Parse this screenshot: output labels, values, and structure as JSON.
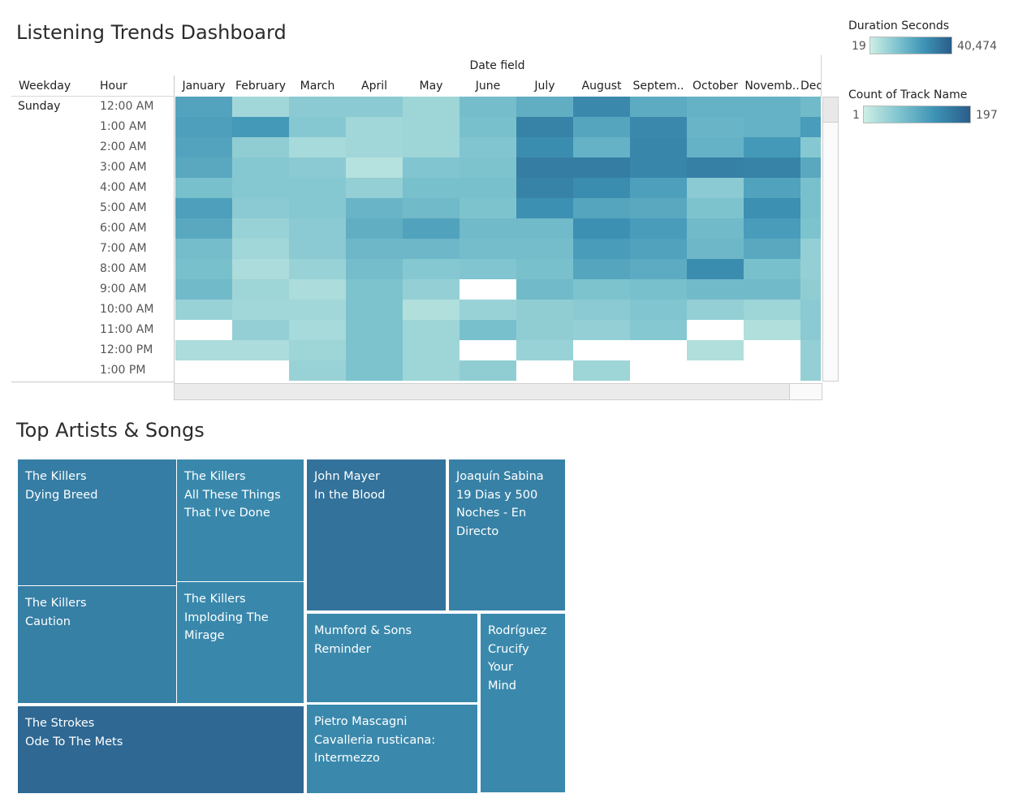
{
  "dashboard": {
    "title": "Listening Trends Dashboard"
  },
  "heatmap": {
    "column_header": "Date field",
    "row_headers": [
      "Weekday",
      "Hour"
    ],
    "weekday": "Sunday",
    "months": [
      "January",
      "February",
      "March",
      "April",
      "May",
      "June",
      "July",
      "August",
      "Septem..",
      "October",
      "Novemb..",
      "Dec"
    ],
    "hours": [
      "12:00 AM",
      "1:00 AM",
      "2:00 AM",
      "3:00 AM",
      "4:00 AM",
      "5:00 AM",
      "6:00 AM",
      "7:00 AM",
      "8:00 AM",
      "9:00 AM",
      "10:00 AM",
      "11:00 AM",
      "12:00 PM",
      "1:00 PM"
    ]
  },
  "legends": {
    "duration": {
      "title": "Duration Seconds",
      "min": "19",
      "max": "40,474"
    },
    "count": {
      "title": "Count of Track Name",
      "min": "1",
      "max": "197"
    }
  },
  "treemap_title": "Top Artists & Songs",
  "chart_data": [
    {
      "type": "heatmap",
      "x_categories": [
        "January",
        "February",
        "March",
        "April",
        "May",
        "June",
        "July",
        "August",
        "September",
        "October",
        "November",
        "December"
      ],
      "y_categories": [
        "12:00 AM",
        "1:00 AM",
        "2:00 AM",
        "3:00 AM",
        "4:00 AM",
        "5:00 AM",
        "6:00 AM",
        "7:00 AM",
        "8:00 AM",
        "9:00 AM",
        "10:00 AM",
        "11:00 AM",
        "12:00 PM",
        "1:00 PM"
      ],
      "value_range": [
        19,
        40474
      ],
      "values": [
        [
          0.55,
          0.18,
          0.28,
          0.28,
          0.2,
          0.38,
          0.48,
          0.72,
          0.5,
          0.46,
          0.46,
          0.4
        ],
        [
          0.58,
          0.62,
          0.3,
          0.18,
          0.2,
          0.36,
          0.76,
          0.54,
          0.72,
          0.44,
          0.46,
          0.6
        ],
        [
          0.55,
          0.26,
          0.16,
          0.18,
          0.2,
          0.32,
          0.7,
          0.46,
          0.74,
          0.46,
          0.62,
          0.3
        ],
        [
          0.52,
          0.3,
          0.28,
          0.1,
          0.32,
          0.34,
          0.8,
          0.8,
          0.74,
          0.78,
          0.76,
          0.52
        ],
        [
          0.36,
          0.3,
          0.3,
          0.24,
          0.36,
          0.36,
          0.76,
          0.7,
          0.58,
          0.28,
          0.56,
          0.36
        ],
        [
          0.58,
          0.28,
          0.3,
          0.44,
          0.4,
          0.34,
          0.68,
          0.54,
          0.52,
          0.34,
          0.68,
          0.36
        ],
        [
          0.52,
          0.22,
          0.28,
          0.48,
          0.56,
          0.4,
          0.4,
          0.68,
          0.6,
          0.4,
          0.6,
          0.34
        ],
        [
          0.38,
          0.18,
          0.28,
          0.42,
          0.42,
          0.38,
          0.38,
          0.6,
          0.56,
          0.42,
          0.52,
          0.24
        ],
        [
          0.36,
          0.14,
          0.22,
          0.38,
          0.3,
          0.32,
          0.36,
          0.54,
          0.5,
          0.7,
          0.36,
          0.24
        ],
        [
          0.4,
          0.2,
          0.14,
          0.34,
          0.24,
          null,
          0.4,
          0.34,
          0.36,
          0.4,
          0.4,
          0.26
        ],
        [
          0.22,
          0.18,
          0.18,
          0.34,
          0.12,
          0.22,
          0.26,
          0.28,
          0.32,
          0.24,
          0.2,
          0.28
        ],
        [
          null,
          0.24,
          0.16,
          0.34,
          0.2,
          0.36,
          0.26,
          0.24,
          0.3,
          null,
          0.12,
          0.28
        ],
        [
          0.14,
          0.14,
          0.2,
          0.34,
          0.2,
          null,
          0.22,
          null,
          null,
          0.12,
          null,
          0.24
        ],
        [
          null,
          null,
          0.22,
          0.34,
          0.2,
          0.26,
          null,
          0.2,
          null,
          null,
          null,
          0.24
        ]
      ],
      "colors": {
        "low": "#c4ebe0",
        "high": "#2a5d8a"
      }
    },
    {
      "type": "treemap",
      "title": "Top Artists & Songs",
      "items": [
        {
          "artist": "The Killers",
          "song_lines": [
            "Dying Breed"
          ],
          "shade": 0.55
        },
        {
          "artist": "The Killers",
          "song_lines": [
            "All These Things",
            "That I've Done"
          ],
          "shade": 0.4
        },
        {
          "artist": "The Killers",
          "song_lines": [
            "Caution"
          ],
          "shade": 0.52
        },
        {
          "artist": "The Killers",
          "song_lines": [
            "Imploding The",
            "Mirage"
          ],
          "shade": 0.4
        },
        {
          "artist": "The Strokes",
          "song_lines": [
            "Ode To The Mets"
          ],
          "shade": 0.85
        },
        {
          "artist": "John Mayer",
          "song_lines": [
            "In the Blood"
          ],
          "shade": 0.7
        },
        {
          "artist": "Joaquín Sabina",
          "song_lines": [
            "19 Dias y 500",
            "Noches - En",
            "Directo"
          ],
          "shade": 0.5
        },
        {
          "artist": "Mumford & Sons",
          "song_lines": [
            "Reminder"
          ],
          "shade": 0.38
        },
        {
          "artist": "Rodríguez",
          "song_lines": [
            "Crucify Your",
            "Mind"
          ],
          "shade": 0.38
        },
        {
          "artist": "Pietro Mascagni",
          "song_lines": [
            "Cavalleria rusticana:",
            "Intermezzo"
          ],
          "shade": 0.38
        }
      ]
    }
  ]
}
